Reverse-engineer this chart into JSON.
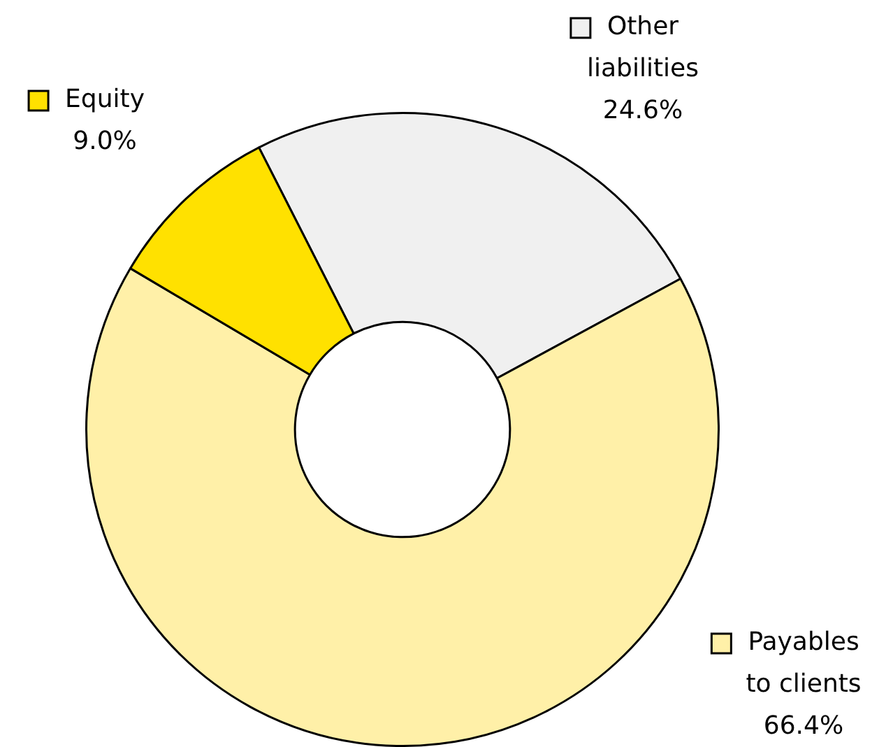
{
  "chart_data": {
    "type": "donut",
    "categories": [
      "Other liabilities",
      "Payables to clients",
      "Equity"
    ],
    "values": [
      24.6,
      66.4,
      9.0
    ],
    "colors": [
      "#f0f0f0",
      "#fff0a8",
      "#ffe100"
    ],
    "value_labels": [
      "24.6%",
      "66.4%",
      "9.0%"
    ],
    "legend": "right"
  }
}
